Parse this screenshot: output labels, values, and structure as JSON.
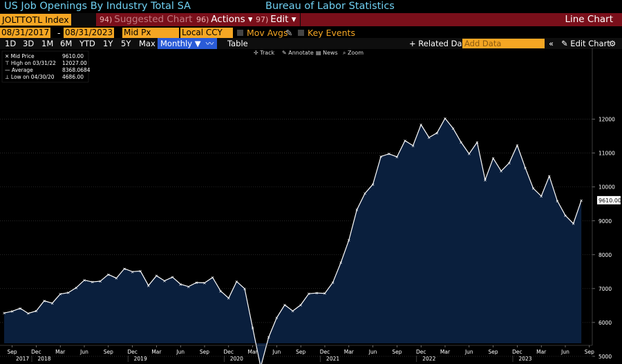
{
  "header": {
    "title": "US Job Openings By Industry Total SA",
    "source": "Bureau of Labor Statistics"
  },
  "command": {
    "ticker": "JOLTTOTL Index",
    "suggested": {
      "num": "94)",
      "label": "Suggested Charts"
    },
    "actions": {
      "num": "96)",
      "label": "Actions ▾"
    },
    "edit": {
      "num": "97)",
      "label": "Edit ▾"
    },
    "chart_type": "Line Chart"
  },
  "options": {
    "start_date": "08/31/2017",
    "end_date": "08/31/2023",
    "field": "Mid Px",
    "currency": "Local CCY",
    "mov_avgs": "Mov Avgs",
    "key_events": "Key Events"
  },
  "ranges": {
    "items": [
      "1D",
      "3D",
      "1M",
      "6M",
      "YTD",
      "1Y",
      "5Y",
      "Max"
    ],
    "frequency": "Monthly ▼",
    "table": "Table",
    "related": "+ Related Dat",
    "add_data_placeholder": "Add Data",
    "edit_chart": "Edit Chart"
  },
  "tools": {
    "track": "Track",
    "annotate": "Annotate",
    "news": "News",
    "zoom": "Zoom"
  },
  "legend": [
    {
      "label": "Mid Price",
      "value": "9610.00"
    },
    {
      "label": "High on 03/31/22",
      "value": "12027.00"
    },
    {
      "label": "Average",
      "value": "8368.0684"
    },
    {
      "label": "Low on 04/30/20",
      "value": "4686.00"
    }
  ],
  "colors": {
    "line": "#ffffff",
    "fill": "#0a1f3d",
    "accent": "#f5a623",
    "menu": "#7a0f1a",
    "title": "#6fd0f2"
  },
  "chart_data": {
    "type": "area",
    "title": "US Job Openings By Industry Total SA",
    "last_value_label": "9610.00",
    "ylim": [
      4200,
      12500
    ],
    "yticks": [
      5000,
      6000,
      7000,
      8000,
      9000,
      10000,
      11000,
      12000
    ],
    "x_month_labels": [
      "Sep",
      "Dec",
      "Mar",
      "Jun",
      "Sep",
      "Dec",
      "Mar",
      "Jun",
      "Sep",
      "Dec",
      "Mar",
      "Jun",
      "Sep",
      "Dec",
      "Mar",
      "Jun",
      "Sep",
      "Dec",
      "Mar",
      "Jun",
      "Sep",
      "Dec",
      "Mar",
      "Jun",
      "Sep"
    ],
    "x_year_labels": [
      {
        "label": "2017",
        "index": 0
      },
      {
        "label": "2018",
        "index": 5
      },
      {
        "label": "2019",
        "index": 17
      },
      {
        "label": "2020",
        "index": 29
      },
      {
        "label": "2021",
        "index": 41
      },
      {
        "label": "2022",
        "index": 53
      },
      {
        "label": "2023",
        "index": 65
      }
    ],
    "x": [
      "2017-08",
      "2017-09",
      "2017-10",
      "2017-11",
      "2017-12",
      "2018-01",
      "2018-02",
      "2018-03",
      "2018-04",
      "2018-05",
      "2018-06",
      "2018-07",
      "2018-08",
      "2018-09",
      "2018-10",
      "2018-11",
      "2018-12",
      "2019-01",
      "2019-02",
      "2019-03",
      "2019-04",
      "2019-05",
      "2019-06",
      "2019-07",
      "2019-08",
      "2019-09",
      "2019-10",
      "2019-11",
      "2019-12",
      "2020-01",
      "2020-02",
      "2020-03",
      "2020-04",
      "2020-05",
      "2020-06",
      "2020-07",
      "2020-08",
      "2020-09",
      "2020-10",
      "2020-11",
      "2020-12",
      "2021-01",
      "2021-02",
      "2021-03",
      "2021-04",
      "2021-05",
      "2021-06",
      "2021-07",
      "2021-08",
      "2021-09",
      "2021-10",
      "2021-11",
      "2021-12",
      "2022-01",
      "2022-02",
      "2022-03",
      "2022-04",
      "2022-05",
      "2022-06",
      "2022-07",
      "2022-08",
      "2022-09",
      "2022-10",
      "2022-11",
      "2022-12",
      "2023-01",
      "2023-02",
      "2023-03",
      "2023-04",
      "2023-05",
      "2023-06",
      "2023-07",
      "2023-08"
    ],
    "values": [
      6280,
      6330,
      6420,
      6270,
      6340,
      6640,
      6570,
      6840,
      6880,
      7030,
      7250,
      7200,
      7220,
      7420,
      7310,
      7590,
      7500,
      7520,
      7090,
      7380,
      7230,
      7340,
      7130,
      7060,
      7180,
      7170,
      7330,
      6930,
      6720,
      7210,
      7000,
      5840,
      4686,
      5570,
      6140,
      6520,
      6340,
      6520,
      6850,
      6870,
      6860,
      7180,
      7770,
      8430,
      9330,
      9810,
      10080,
      10900,
      10980,
      10890,
      11370,
      11220,
      11840,
      11460,
      11600,
      12027,
      11730,
      11320,
      10980,
      11320,
      10210,
      10850,
      10470,
      10710,
      11230,
      10570,
      9960,
      9730,
      10320,
      9590,
      9160,
      8920,
      9610
    ]
  }
}
